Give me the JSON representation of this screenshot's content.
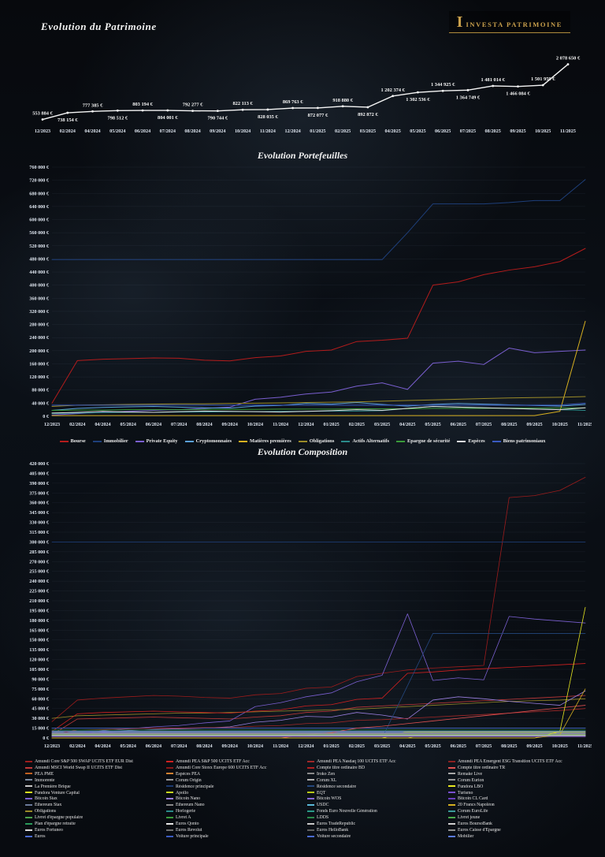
{
  "brand": {
    "initial": "I",
    "name": "INVESTA PATRIMOINE",
    "color": "#c9a04c"
  },
  "chart_data": [
    {
      "id": "patrimoine-total",
      "type": "line",
      "title": "Evolution du Patrimoine",
      "categories": [
        "12/2023",
        "02/2024",
        "04/2024",
        "05/2024",
        "06/2024",
        "07/2024",
        "08/2024",
        "09/2024",
        "10/2024",
        "11/2024",
        "12/2024",
        "01/2025",
        "02/2025",
        "03/2025",
        "04/2025",
        "05/2025",
        "06/2025",
        "07/2025",
        "08/2025",
        "09/2025",
        "10/2025",
        "11/2025"
      ],
      "ylim": [
        500000,
        2200000
      ],
      "legend_position": "none",
      "grid": false,
      "series": [
        {
          "name": "Patrimoine total",
          "color": "#f5f5f5",
          "values": [
            553884,
            738154,
            777385,
            798512,
            803194,
            804001,
            792277,
            790744,
            822113,
            828035,
            869763,
            872077,
            918880,
            892872,
            1202374,
            1302536,
            1344925,
            1364749,
            1481014,
            1466084,
            1501959,
            2078650
          ]
        }
      ]
    },
    {
      "id": "portefeuilles",
      "type": "line",
      "title": "Evolution Portefeuilles",
      "categories": [
        "12/2023",
        "02/2024",
        "04/2024",
        "05/2024",
        "06/2024",
        "07/2024",
        "08/2024",
        "09/2024",
        "10/2024",
        "11/2024",
        "12/2024",
        "01/2025",
        "02/2025",
        "03/2025",
        "04/2025",
        "05/2025",
        "06/2025",
        "07/2025",
        "08/2025",
        "09/2025",
        "10/2025",
        "11/2025"
      ],
      "ylim": [
        0,
        760000
      ],
      "ystep": 40000,
      "ylabel_suffix": " €",
      "legend_position": "bottom",
      "grid": true,
      "series": [
        {
          "name": "Bourse",
          "color": "#b41c1c",
          "values": [
            40000,
            170000,
            174000,
            176000,
            178000,
            177000,
            171000,
            169000,
            179000,
            184000,
            198000,
            202000,
            228000,
            232000,
            238000,
            400000,
            410000,
            432000,
            446000,
            456000,
            472000,
            512000
          ]
        },
        {
          "name": "Immobilier",
          "color": "#1e3f7a",
          "values": [
            478000,
            478000,
            478000,
            478000,
            478000,
            478000,
            478000,
            478000,
            478000,
            478000,
            478000,
            478000,
            478000,
            478000,
            560000,
            648000,
            648000,
            648000,
            652000,
            658000,
            658000,
            722000
          ]
        },
        {
          "name": "Private Equity",
          "color": "#7a5fd0",
          "values": [
            4000,
            8000,
            12000,
            15000,
            18000,
            20000,
            24000,
            28000,
            52000,
            58000,
            68000,
            74000,
            92000,
            102000,
            82000,
            162000,
            168000,
            158000,
            208000,
            194000,
            198000,
            202000
          ]
        },
        {
          "name": "Cryptomonnaies",
          "color": "#5aa0d8",
          "values": [
            18000,
            24000,
            27000,
            29000,
            30000,
            28000,
            26000,
            25000,
            31000,
            33000,
            39000,
            37000,
            42000,
            36000,
            31000,
            36000,
            39000,
            37000,
            35000,
            33000,
            31000,
            36000
          ]
        },
        {
          "name": "Matières premières",
          "color": "#d8b020",
          "values": [
            2000,
            2000,
            2000,
            2000,
            2000,
            2000,
            2000,
            2000,
            2000,
            2000,
            2000,
            2000,
            2000,
            2000,
            2000,
            2000,
            2000,
            2000,
            2000,
            2000,
            15000,
            290000
          ]
        },
        {
          "name": "Obligations",
          "color": "#9a8a28",
          "values": [
            30000,
            34000,
            35000,
            36000,
            37000,
            38000,
            38000,
            39000,
            40000,
            41000,
            42000,
            43000,
            44000,
            46000,
            48000,
            50000,
            52000,
            54000,
            56000,
            57000,
            58000,
            60000
          ]
        },
        {
          "name": "Actifs Alternatifs",
          "color": "#2a8a8a",
          "values": [
            8000,
            10000,
            11000,
            12000,
            12000,
            13000,
            13000,
            14000,
            14000,
            15000,
            15000,
            16000,
            16000,
            17000,
            24000,
            30000,
            28000,
            26000,
            24000,
            22000,
            20000,
            18000
          ]
        },
        {
          "name": "Epargne de sécurité",
          "color": "#3a9a3a",
          "values": [
            18000,
            19000,
            19000,
            20000,
            20000,
            20000,
            21000,
            21000,
            21000,
            22000,
            22000,
            22000,
            23000,
            23000,
            23000,
            24000,
            24000,
            24000,
            25000,
            25000,
            25000,
            26000
          ]
        },
        {
          "name": "Espèces",
          "color": "#e0e0e0",
          "values": [
            10000,
            12000,
            15000,
            13000,
            12000,
            14000,
            16000,
            15000,
            14000,
            13000,
            15000,
            17000,
            20000,
            18000,
            24000,
            30000,
            28000,
            26000,
            24000,
            22000,
            20000,
            26000
          ]
        },
        {
          "name": "Biens patrimoniaux",
          "color": "#3a5ac0",
          "values": [
            34000,
            34000,
            34000,
            34000,
            34000,
            34000,
            34000,
            34000,
            34000,
            34000,
            34000,
            34000,
            34000,
            34000,
            34000,
            34000,
            34000,
            34000,
            34000,
            34000,
            34000,
            40000
          ]
        }
      ]
    },
    {
      "id": "composition",
      "type": "line",
      "title": "Evolution Composition",
      "categories": [
        "12/2023",
        "02/2024",
        "04/2024",
        "05/2024",
        "06/2024",
        "07/2024",
        "08/2024",
        "09/2024",
        "10/2024",
        "11/2024",
        "12/2024",
        "01/2025",
        "02/2025",
        "03/2025",
        "04/2025",
        "05/2025",
        "06/2025",
        "07/2025",
        "08/2025",
        "09/2025",
        "10/2025",
        "11/2025"
      ],
      "ylim": [
        0,
        420000
      ],
      "ystep": 15000,
      "ylabel_suffix": " €",
      "legend_position": "bottom-grid",
      "grid": true,
      "series": [
        {
          "name": "Amundi Core S&P 500 SWAP UCITS ETF EUR Dist",
          "color": "#9c1c1c",
          "values": [
            25000,
            58000,
            61000,
            63000,
            65000,
            64000,
            62000,
            61000,
            66000,
            68000,
            76000,
            78000,
            94000,
            99000,
            104000,
            107000,
            109000,
            111000,
            368000,
            371000,
            379000,
            399000
          ]
        },
        {
          "name": "Amundi MSCI World Swap II UCITS ETF Dist",
          "color": "#c03838",
          "values": [
            5000,
            29000,
            30000,
            31000,
            32000,
            31000,
            30000,
            29000,
            32000,
            34000,
            39000,
            41000,
            47000,
            49000,
            51000,
            53000,
            55000,
            57000,
            59000,
            61000,
            63000,
            65000
          ]
        },
        {
          "name": "PEA PME",
          "color": "#c06020",
          "flat": 4000
        },
        {
          "name": "Immorente",
          "color": "#7a8aa0",
          "flat": 9000
        },
        {
          "name": "La Première Brique",
          "color": "#c8c8c8",
          "flat": 6000
        },
        {
          "name": "Fundora Venture Capital",
          "color": "#d8e020",
          "values": [
            0,
            0,
            0,
            0,
            0,
            0,
            0,
            0,
            0,
            0,
            0,
            0,
            0,
            0,
            10000,
            10000,
            10000,
            10000,
            10000,
            10000,
            10000,
            10000
          ]
        },
        {
          "name": "Bitcoin Stax",
          "color": "#7a5fd0",
          "values": [
            4000,
            7000,
            11000,
            14000,
            17000,
            19000,
            23000,
            26000,
            48000,
            54000,
            63000,
            69000,
            86000,
            96000,
            190000,
            88000,
            92000,
            89000,
            186000,
            182000,
            179000,
            176000
          ]
        },
        {
          "name": "Ethereum Stax",
          "color": "#6a7a9a",
          "flat": 8000
        },
        {
          "name": "Obligations",
          "color": "#9a8a28",
          "values": [
            30000,
            34000,
            35000,
            36000,
            37000,
            38000,
            38000,
            39000,
            40000,
            41000,
            42000,
            43000,
            44000,
            46000,
            48000,
            50000,
            52000,
            54000,
            56000,
            57000,
            58000,
            60000
          ]
        },
        {
          "name": "Livret d'épargne populaire",
          "color": "#4aa04a",
          "flat": 10000
        },
        {
          "name": "Plan d'épargne retraite",
          "color": "#2a9a5a",
          "flat": 7000
        },
        {
          "name": "Euros Fortuneo",
          "color": "#d8d8d8",
          "flat": 5000
        },
        {
          "name": "Euros",
          "color": "#4a6ad0",
          "flat": 3000
        },
        {
          "name": "Amundi PEA S&P 500 UCITS ETF Acc",
          "color": "#d02020",
          "values": [
            10000,
            37000,
            39000,
            40000,
            41000,
            40000,
            39000,
            38000,
            41000,
            43000,
            49000,
            51000,
            59000,
            61000,
            99000,
            101000,
            104000,
            106000,
            108000,
            110000,
            112000,
            114000
          ]
        },
        {
          "name": "Amundi Core Stoxx Europe 600 UCITS ETF Acc",
          "color": "#881818",
          "flat": 12000
        },
        {
          "name": "Espèces PEA",
          "color": "#d08030",
          "flat": 3000
        },
        {
          "name": "Corum Origin",
          "color": "#9a9a9a",
          "flat": 15000
        },
        {
          "name": "Résidence principale",
          "color": "#1c3a70",
          "flat": 300000
        },
        {
          "name": "Apollo",
          "color": "#c8d820",
          "values": [
            0,
            0,
            0,
            0,
            0,
            0,
            0,
            0,
            0,
            0,
            0,
            0,
            0,
            0,
            9000,
            9000,
            9000,
            9000,
            9000,
            9000,
            9000,
            9000
          ]
        },
        {
          "name": "Bitcoin Nano",
          "color": "#9a7fe0",
          "values": [
            2000,
            5000,
            9000,
            11000,
            13000,
            14000,
            15000,
            17000,
            24000,
            27000,
            33000,
            32000,
            39000,
            35000,
            29000,
            58000,
            63000,
            60000,
            56000,
            53000,
            50000,
            72000
          ]
        },
        {
          "name": "Ethereum Nano",
          "color": "#8a8a8a",
          "flat": 6000
        },
        {
          "name": "Horlogerie",
          "color": "#2a8a8a",
          "flat": 5000
        },
        {
          "name": "Livret A",
          "color": "#3a9a3a",
          "flat": 15000
        },
        {
          "name": "Euros Qonto",
          "color": "#e8e8e8",
          "flat": 4000
        },
        {
          "name": "Euros Revolut",
          "color": "#707070",
          "flat": 2000
        },
        {
          "name": "Voiture principale",
          "color": "#3a5ac0",
          "flat": 15000
        },
        {
          "name": "Amundi PEA Nasdaq 100 UCITS ETF Acc",
          "color": "#a02828",
          "values": [
            5000,
            12000,
            13000,
            14000,
            15000,
            15000,
            16000,
            16000,
            18000,
            19000,
            22000,
            23000,
            27000,
            28000,
            30000,
            32000,
            34000,
            36000,
            38000,
            40000,
            42000,
            45000
          ]
        },
        {
          "name": "Compte titre ordinaire BD",
          "color": "#b02020",
          "flat": 8000
        },
        {
          "name": "Iroko Zen",
          "color": "#8a8a8a",
          "flat": 10000
        },
        {
          "name": "Corum XL",
          "color": "#b0b0b0",
          "flat": 8000
        },
        {
          "name": "Résidence secondaire",
          "color": "#24477e",
          "values": [
            0,
            0,
            0,
            0,
            0,
            0,
            0,
            0,
            0,
            0,
            0,
            0,
            0,
            0,
            80000,
            160000,
            160000,
            160000,
            160000,
            160000,
            160000,
            160000
          ]
        },
        {
          "name": "EQT",
          "color": "#b8c818",
          "values": [
            0,
            0,
            0,
            0,
            0,
            0,
            0,
            0,
            0,
            0,
            0,
            0,
            0,
            0,
            0,
            8000,
            8000,
            8000,
            8000,
            8000,
            8000,
            8000
          ]
        },
        {
          "name": "Bitcoin WOS",
          "color": "#8468d8",
          "flat": 5000
        },
        {
          "name": "USDC",
          "color": "#5ab8d8",
          "flat": 4000
        },
        {
          "name": "Fonds Euro Nouvelle Génération",
          "color": "#2a9a8a",
          "flat": 12000
        },
        {
          "name": "LDDS",
          "color": "#2a8a4a",
          "flat": 12000
        },
        {
          "name": "Euros TradeRepublic",
          "color": "#c8c8c8",
          "flat": 3000
        },
        {
          "name": "Euros HelloBank",
          "color": "#606060",
          "flat": 2000
        },
        {
          "name": "Voiture secondaire",
          "color": "#4a6ad0",
          "flat": 8000
        },
        {
          "name": "Amundi PEA Emergent ESG Transition UCITS ETF Acc",
          "color": "#8c2020",
          "flat": 6000
        },
        {
          "name": "Compte titre ordinaire TR",
          "color": "#e05050",
          "values": [
            0,
            0,
            0,
            0,
            0,
            0,
            0,
            0,
            0,
            0,
            5000,
            8000,
            15000,
            18000,
            22000,
            26000,
            30000,
            34000,
            38000,
            42000,
            46000,
            50000
          ]
        },
        {
          "name": "Remake Live",
          "color": "#a8a8a8",
          "flat": 7000
        },
        {
          "name": "Corum Eurion",
          "color": "#989898",
          "flat": 6000
        },
        {
          "name": "Fundora LBO",
          "color": "#e8e820",
          "values": [
            0,
            0,
            0,
            0,
            0,
            0,
            0,
            0,
            0,
            0,
            0,
            0,
            0,
            0,
            0,
            0,
            0,
            0,
            0,
            0,
            10000,
            200000
          ]
        },
        {
          "name": "Turismo",
          "color": "#7a4fd0",
          "flat": 3000
        },
        {
          "name": "Bitcoin CL Card",
          "color": "#6a3fc0",
          "flat": 2000
        },
        {
          "name": "20 Francs Napoléon",
          "color": "#d4b020",
          "values": [
            0,
            0,
            0,
            0,
            0,
            0,
            0,
            0,
            0,
            0,
            0,
            0,
            0,
            0,
            0,
            0,
            0,
            0,
            0,
            0,
            5000,
            75000
          ]
        },
        {
          "name": "Corum EuroLife",
          "color": "#3a9a9a",
          "flat": 4000
        },
        {
          "name": "Livret jeune",
          "color": "#4aaa4a",
          "flat": 5000
        },
        {
          "name": "Euros BoursoBank",
          "color": "#d0d0d0",
          "flat": 4000
        },
        {
          "name": "Euros Caisse d'Épargne",
          "color": "#909090",
          "flat": 3000
        },
        {
          "name": "Mobilier",
          "color": "#5a7ae0",
          "flat": 10000
        }
      ]
    }
  ]
}
